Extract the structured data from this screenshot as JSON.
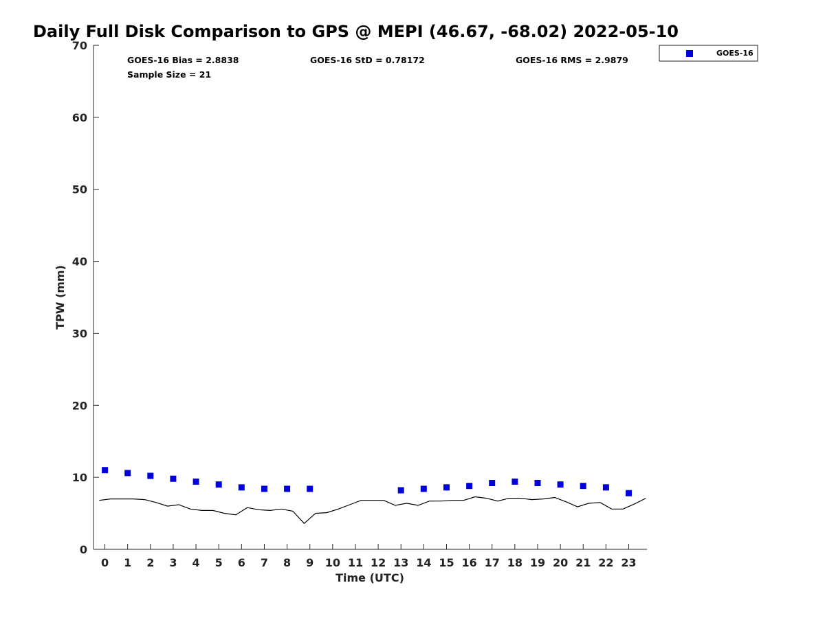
{
  "chart_data": {
    "type": "scatter",
    "title": "Daily Full Disk Comparison to GPS @ MEPI (46.67, -68.02) 2022-05-10",
    "xlabel": "Time (UTC)",
    "ylabel": "TPW (mm)",
    "xlim": [
      -0.5,
      23.8
    ],
    "ylim": [
      0,
      70
    ],
    "x_ticks": [
      "0",
      "1",
      "2",
      "3",
      "4",
      "5",
      "6",
      "7",
      "8",
      "9",
      "10",
      "11",
      "12",
      "13",
      "14",
      "15",
      "16",
      "17",
      "18",
      "19",
      "20",
      "21",
      "22",
      "23"
    ],
    "y_ticks": [
      "0",
      "10",
      "20",
      "30",
      "40",
      "50",
      "60",
      "70"
    ],
    "grid": false,
    "legend_position": "top-right",
    "stats": {
      "bias": "GOES-16 Bias = 2.8838",
      "std": "GOES-16 StD = 0.78172",
      "rms": "GOES-16 RMS = 2.9879",
      "sample": "Sample Size = 21"
    },
    "series": [
      {
        "name": "GOES-16",
        "style": "square-markers",
        "color": "#0000dd",
        "x": [
          0,
          1,
          2,
          3,
          4,
          5,
          6,
          7,
          8,
          9,
          13,
          14,
          15,
          16,
          17,
          18,
          19,
          20,
          21,
          22,
          23
        ],
        "y": [
          11.0,
          10.6,
          10.2,
          9.8,
          9.4,
          9.0,
          8.6,
          8.4,
          8.4,
          8.4,
          8.2,
          8.4,
          8.6,
          8.8,
          9.2,
          9.4,
          9.2,
          9.0,
          8.8,
          8.6,
          7.8
        ]
      },
      {
        "style": "line",
        "color": "#000000",
        "x": [
          -0.25,
          0.25,
          0.75,
          1.25,
          1.75,
          2.25,
          2.75,
          3.25,
          3.75,
          4.25,
          4.75,
          5.25,
          5.75,
          6.25,
          6.75,
          7.25,
          7.75,
          8.25,
          8.75,
          9.25,
          9.75,
          10.25,
          10.75,
          11.25,
          11.75,
          12.25,
          12.75,
          13.25,
          13.75,
          14.25,
          14.75,
          15.25,
          15.75,
          16.25,
          16.75,
          17.25,
          17.75,
          18.25,
          18.75,
          19.25,
          19.75,
          20.25,
          20.75,
          21.25,
          21.75,
          22.25,
          22.75,
          23.25,
          23.75
        ],
        "y": [
          6.8,
          7.0,
          7.0,
          7.0,
          6.9,
          6.5,
          6.0,
          6.2,
          5.6,
          5.4,
          5.4,
          5.0,
          4.8,
          5.8,
          5.5,
          5.4,
          5.6,
          5.3,
          3.6,
          5.0,
          5.1,
          5.6,
          6.2,
          6.8,
          6.8,
          6.8,
          6.1,
          6.4,
          6.1,
          6.7,
          6.7,
          6.8,
          6.8,
          7.3,
          7.1,
          6.7,
          7.1,
          7.1,
          6.9,
          7.0,
          7.2,
          6.6,
          5.9,
          6.4,
          6.5,
          5.6,
          5.6,
          6.3,
          7.1
        ]
      }
    ]
  }
}
